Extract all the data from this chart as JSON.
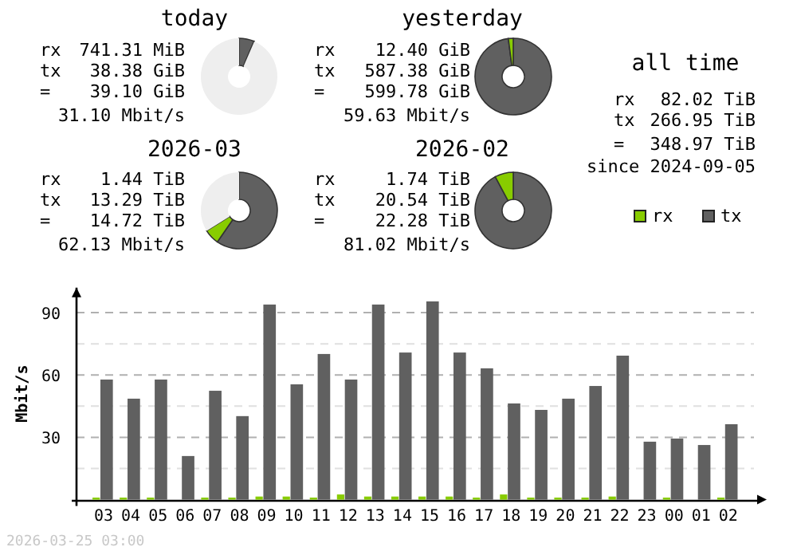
{
  "chart_data": [
    {
      "type": "donut",
      "title": "today",
      "categories": [
        null,
        null,
        null
      ],
      "values": [
        6.4,
        0.12,
        93.48
      ],
      "colors": [
        "#606060",
        "#88cc00",
        "#eeeeee"
      ],
      "annotations": [
        "rx 741.31 MiB",
        "tx 38.38 GiB",
        "= 39.10 GiB",
        "31.10 Mbit/s"
      ]
    },
    {
      "type": "donut",
      "title": "yesterday",
      "categories": [
        null,
        null,
        null
      ],
      "values": [
        97.93,
        2.07,
        0
      ],
      "colors": [
        "#606060",
        "#88cc00",
        "#eeeeee"
      ],
      "annotations": [
        "rx 12.40 GiB",
        "tx 587.38 GiB",
        "= 599.78 GiB",
        "59.63 Mbit/s"
      ]
    },
    {
      "type": "donut",
      "title": "2026-03",
      "categories": [
        null,
        null,
        null
      ],
      "values": [
        59.65,
        6.46,
        33.89
      ],
      "colors": [
        "#606060",
        "#88cc00",
        "#eeeeee"
      ],
      "annotations": [
        "rx 1.44 TiB",
        "tx 13.29 TiB",
        "= 14.72 TiB",
        "62.13 Mbit/s"
      ]
    },
    {
      "type": "donut",
      "title": "2026-02",
      "categories": [
        null,
        null,
        null
      ],
      "values": [
        92.19,
        7.81,
        0
      ],
      "colors": [
        "#606060",
        "#88cc00",
        "#eeeeee"
      ],
      "annotations": [
        "rx 1.74 TiB",
        "tx 20.54 TiB",
        "= 22.28 TiB",
        "81.02 Mbit/s"
      ]
    },
    {
      "type": "other",
      "title": "all time",
      "annotations": [
        "rx 82.02 TiB",
        "tx 266.95 TiB",
        "= 348.97 TiB",
        "since 2024-09-05"
      ]
    },
    {
      "type": "bar",
      "ylabel": "Mbit/s",
      "categories": [
        "03",
        "04",
        "05",
        "06",
        "07",
        "08",
        "09",
        "10",
        "11",
        "12",
        "13",
        "14",
        "15",
        "16",
        "17",
        "18",
        "19",
        "20",
        "21",
        "22",
        "23",
        "00",
        "01",
        "02"
      ],
      "series": [
        {
          "name": "rx",
          "color": "#88cc00",
          "values": [
            1,
            1,
            1,
            0,
            1,
            1,
            1.5,
            1.5,
            1,
            2.5,
            1.5,
            1.5,
            1.5,
            1.5,
            1,
            2.5,
            1,
            1,
            1,
            1.5,
            0,
            1,
            0,
            1
          ]
        },
        {
          "name": "tx",
          "color": "#606060",
          "values": [
            57.8,
            48.6,
            57.8,
            21.0,
            52.4,
            40.2,
            93.9,
            55.5,
            70.1,
            57.8,
            93.9,
            70.8,
            95.4,
            70.8,
            63.2,
            46.3,
            43.2,
            48.6,
            54.7,
            69.3,
            27.9,
            29.4,
            26.3,
            36.3
          ]
        }
      ],
      "ylim": [
        0,
        102
      ],
      "yticks": [
        {
          "value": 15,
          "label": null
        },
        30,
        {
          "value": 45,
          "label": null
        },
        60,
        {
          "value": 75,
          "label": null
        },
        90
      ],
      "grid": "y",
      "legend": "top right",
      "annotations": [
        "2026-03-25 03:00"
      ]
    }
  ]
}
